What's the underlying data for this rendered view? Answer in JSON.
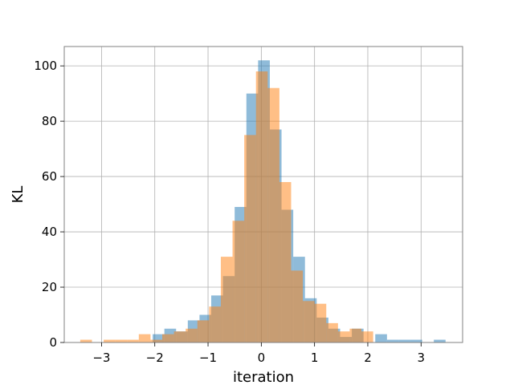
{
  "chart_data": {
    "type": "bar",
    "xlabel": "iteration",
    "ylabel": "KL",
    "xlim": [
      -3.7,
      3.78
    ],
    "ylim": [
      0,
      107
    ],
    "grid": true,
    "x_ticks": [
      -3,
      -2,
      -1,
      0,
      1,
      2,
      3
    ],
    "x_tick_labels": [
      "−3",
      "−2",
      "−1",
      "0",
      "1",
      "2",
      "3"
    ],
    "y_ticks": [
      0,
      20,
      40,
      60,
      80,
      100
    ],
    "y_tick_labels": [
      "0",
      "20",
      "40",
      "60",
      "80",
      "100"
    ],
    "series": [
      {
        "color": "#1f77b4",
        "opacity": 0.5,
        "bins": [
          {
            "x0": -2.04,
            "x1": -1.82,
            "count": 3
          },
          {
            "x0": -1.82,
            "x1": -1.6,
            "count": 5
          },
          {
            "x0": -1.6,
            "x1": -1.38,
            "count": 4
          },
          {
            "x0": -1.38,
            "x1": -1.16,
            "count": 8
          },
          {
            "x0": -1.16,
            "x1": -0.94,
            "count": 10
          },
          {
            "x0": -0.94,
            "x1": -0.72,
            "count": 17
          },
          {
            "x0": -0.72,
            "x1": -0.5,
            "count": 24
          },
          {
            "x0": -0.5,
            "x1": -0.28,
            "count": 49
          },
          {
            "x0": -0.28,
            "x1": -0.06,
            "count": 90
          },
          {
            "x0": -0.06,
            "x1": 0.16,
            "count": 102
          },
          {
            "x0": 0.16,
            "x1": 0.38,
            "count": 77
          },
          {
            "x0": 0.38,
            "x1": 0.6,
            "count": 48
          },
          {
            "x0": 0.6,
            "x1": 0.82,
            "count": 31
          },
          {
            "x0": 0.82,
            "x1": 1.04,
            "count": 16
          },
          {
            "x0": 1.04,
            "x1": 1.26,
            "count": 9
          },
          {
            "x0": 1.26,
            "x1": 1.48,
            "count": 5
          },
          {
            "x0": 1.48,
            "x1": 1.7,
            "count": 2
          },
          {
            "x0": 1.7,
            "x1": 1.92,
            "count": 5
          },
          {
            "x0": 1.92,
            "x1": 2.14,
            "count": 0
          },
          {
            "x0": 2.14,
            "x1": 2.36,
            "count": 3
          },
          {
            "x0": 2.36,
            "x1": 2.58,
            "count": 1
          },
          {
            "x0": 2.58,
            "x1": 2.8,
            "count": 1
          },
          {
            "x0": 2.8,
            "x1": 3.02,
            "count": 1
          },
          {
            "x0": 3.02,
            "x1": 3.24,
            "count": 0
          },
          {
            "x0": 3.24,
            "x1": 3.46,
            "count": 1
          }
        ]
      },
      {
        "color": "#ff7f0e",
        "opacity": 0.5,
        "bins": [
          {
            "x0": -3.4,
            "x1": -3.18,
            "count": 1
          },
          {
            "x0": -3.18,
            "x1": -2.96,
            "count": 0
          },
          {
            "x0": -2.96,
            "x1": -2.74,
            "count": 1
          },
          {
            "x0": -2.74,
            "x1": -2.52,
            "count": 1
          },
          {
            "x0": -2.52,
            "x1": -2.3,
            "count": 1
          },
          {
            "x0": -2.3,
            "x1": -2.08,
            "count": 3
          },
          {
            "x0": -2.08,
            "x1": -1.86,
            "count": 1
          },
          {
            "x0": -1.86,
            "x1": -1.64,
            "count": 3
          },
          {
            "x0": -1.64,
            "x1": -1.42,
            "count": 4
          },
          {
            "x0": -1.42,
            "x1": -1.2,
            "count": 5
          },
          {
            "x0": -1.2,
            "x1": -0.98,
            "count": 8
          },
          {
            "x0": -0.98,
            "x1": -0.76,
            "count": 13
          },
          {
            "x0": -0.76,
            "x1": -0.54,
            "count": 31
          },
          {
            "x0": -0.54,
            "x1": -0.32,
            "count": 44
          },
          {
            "x0": -0.32,
            "x1": -0.1,
            "count": 75
          },
          {
            "x0": -0.1,
            "x1": 0.12,
            "count": 98
          },
          {
            "x0": 0.12,
            "x1": 0.34,
            "count": 92
          },
          {
            "x0": 0.34,
            "x1": 0.56,
            "count": 58
          },
          {
            "x0": 0.56,
            "x1": 0.78,
            "count": 26
          },
          {
            "x0": 0.78,
            "x1": 1.0,
            "count": 15
          },
          {
            "x0": 1.0,
            "x1": 1.22,
            "count": 14
          },
          {
            "x0": 1.22,
            "x1": 1.44,
            "count": 7
          },
          {
            "x0": 1.44,
            "x1": 1.66,
            "count": 4
          },
          {
            "x0": 1.66,
            "x1": 1.88,
            "count": 5
          },
          {
            "x0": 1.88,
            "x1": 2.1,
            "count": 4
          }
        ]
      }
    ]
  }
}
